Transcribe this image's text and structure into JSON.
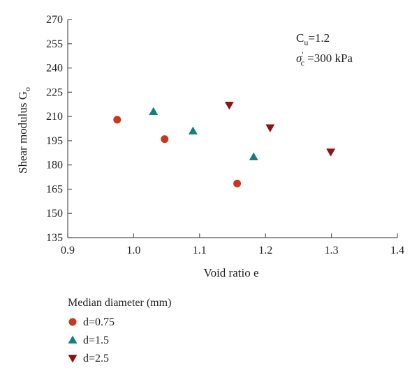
{
  "chart_data": {
    "type": "scatter",
    "xlabel": "Void ratio e",
    "ylabel": "Shear modulus G",
    "ylabel_sub": "o",
    "xlim": [
      0.9,
      1.4
    ],
    "ylim": [
      135,
      270
    ],
    "xticks": [
      0.9,
      1.0,
      1.1,
      1.2,
      1.3,
      1.4
    ],
    "yticks": [
      135,
      150,
      165,
      180,
      195,
      210,
      225,
      240,
      255,
      270
    ],
    "xtick_labels": [
      "0.9",
      "1.0",
      "1.1",
      "1.2",
      "1.3",
      "1.4"
    ],
    "ytick_labels": [
      "135",
      "150",
      "165",
      "180",
      "195",
      "210",
      "225",
      "240",
      "255",
      "270"
    ],
    "annotations": {
      "line1_main": "C",
      "line1_sub": "u",
      "line1_rest": "=1.2",
      "line2_main": "σ",
      "line2_sup": "'",
      "line2_sub": "c",
      "line2_rest": " =300 kPa"
    },
    "legend": {
      "title": "Median diameter (mm)",
      "placement": "below-left"
    },
    "series": [
      {
        "name": "d=0.75",
        "marker": "circle",
        "color": "#C8381E",
        "x": [
          0.975,
          1.047,
          1.157
        ],
        "y": [
          208,
          196,
          168.5
        ]
      },
      {
        "name": "d=1.5",
        "marker": "triangle-up",
        "color": "#138080",
        "x": [
          1.03,
          1.09,
          1.182
        ],
        "y": [
          213,
          201,
          185
        ]
      },
      {
        "name": "d=2.5",
        "marker": "triangle-down",
        "color": "#8B1414",
        "x": [
          1.145,
          1.207,
          1.299
        ],
        "y": [
          217,
          203,
          188
        ]
      }
    ]
  }
}
